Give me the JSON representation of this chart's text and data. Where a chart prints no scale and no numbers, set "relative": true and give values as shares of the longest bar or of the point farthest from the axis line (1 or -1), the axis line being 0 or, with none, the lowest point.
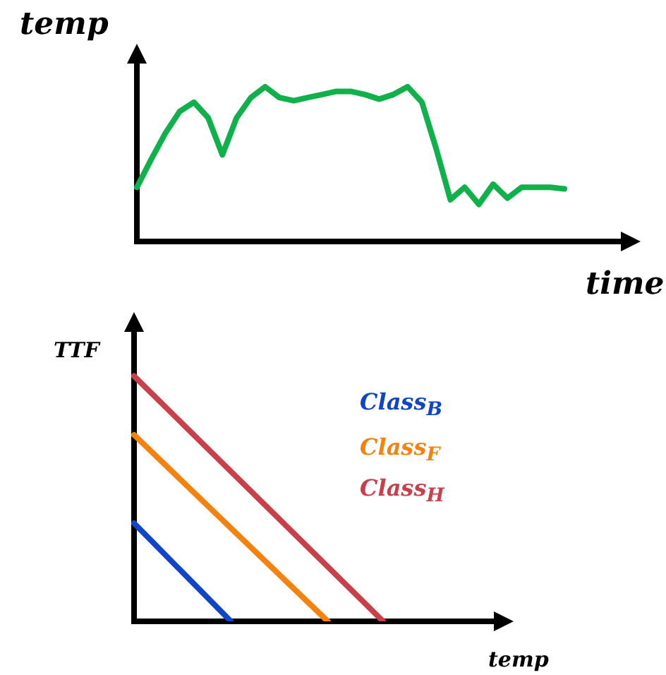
{
  "chart_data": [
    {
      "type": "line",
      "relative": true,
      "xlabel": "time",
      "ylabel": "temp",
      "color": "#10b04a",
      "categories": [
        null,
        null,
        null,
        null,
        null,
        null,
        null,
        null,
        null,
        null,
        null,
        null,
        null,
        null,
        null,
        null,
        null,
        null,
        null,
        null,
        null,
        null,
        null,
        null,
        null,
        null,
        null,
        null,
        null,
        null,
        null
      ],
      "values": [
        0.35,
        0.53,
        0.7,
        0.84,
        0.9,
        0.8,
        0.56,
        0.8,
        0.93,
        1,
        0.93,
        0.91,
        0.93,
        0.95,
        0.97,
        0.97,
        0.95,
        0.92,
        0.95,
        1,
        0.9,
        0.6,
        0.27,
        0.35,
        0.24,
        0.37,
        0.28,
        0.35,
        0.35,
        0.35,
        0.34
      ]
    },
    {
      "type": "line",
      "relative": true,
      "xlabel": "temp",
      "ylabel": "TTF",
      "categories": [
        null,
        null,
        null,
        null,
        null,
        null,
        null,
        null,
        null,
        null,
        null,
        null,
        null,
        null,
        null,
        null,
        null,
        null,
        null,
        null,
        null,
        null,
        null,
        null,
        null,
        null,
        null
      ],
      "series": [
        {
          "name": "Class$_{B}$",
          "color": "#1045c8",
          "values": [
            0.4,
            null,
            null,
            null,
            null,
            null,
            null,
            0,
            null,
            null,
            null,
            null,
            null,
            null,
            null,
            null,
            null,
            null,
            null,
            null,
            null,
            null,
            null,
            null,
            null,
            null,
            null
          ]
        },
        {
          "name": "Class$_{F}$",
          "color": "#f5820f",
          "values": [
            0.76,
            null,
            null,
            null,
            null,
            null,
            null,
            null,
            null,
            null,
            null,
            null,
            null,
            null,
            0,
            null,
            null,
            null,
            null,
            null,
            null,
            null,
            null,
            null,
            null,
            null,
            null
          ]
        },
        {
          "name": "Class$_{H}$",
          "color": "#c8404a",
          "values": [
            1,
            null,
            null,
            null,
            null,
            null,
            null,
            null,
            null,
            null,
            null,
            null,
            null,
            null,
            null,
            null,
            null,
            null,
            0,
            null,
            null,
            null,
            null,
            null,
            null,
            null,
            null
          ]
        }
      ]
    }
  ]
}
